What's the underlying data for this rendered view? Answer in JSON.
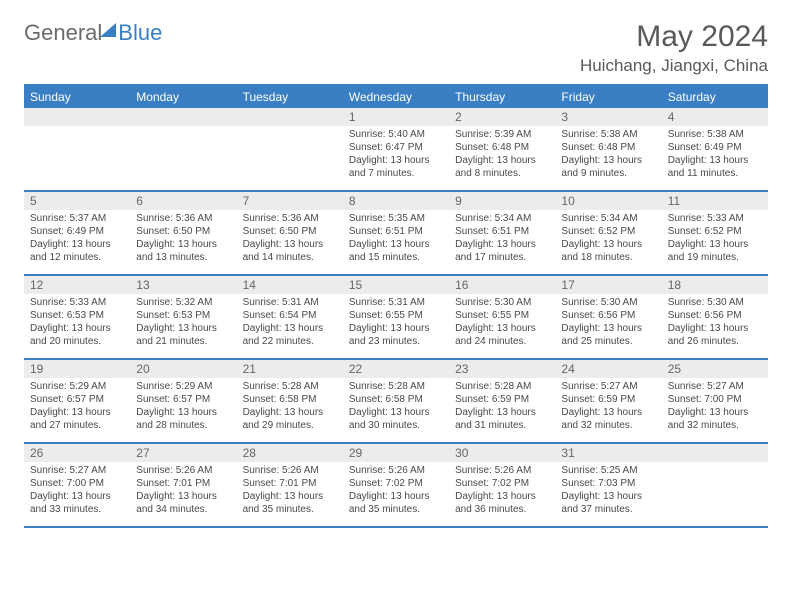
{
  "logo": {
    "part1": "General",
    "part2": "Blue"
  },
  "title": "May 2024",
  "location": "Huichang, Jiangxi, China",
  "day_headers": [
    "Sunday",
    "Monday",
    "Tuesday",
    "Wednesday",
    "Thursday",
    "Friday",
    "Saturday"
  ],
  "colors": {
    "accent": "#3a7fc4",
    "head_bg": "#3a7fc4",
    "head_text": "#ffffff",
    "daynum_bg": "#ececec",
    "text": "#4a4a4a",
    "title_text": "#595959"
  },
  "weeks": [
    [
      {
        "n": "",
        "sunrise": "",
        "sunset": "",
        "daylight": ""
      },
      {
        "n": "",
        "sunrise": "",
        "sunset": "",
        "daylight": ""
      },
      {
        "n": "",
        "sunrise": "",
        "sunset": "",
        "daylight": ""
      },
      {
        "n": "1",
        "sunrise": "Sunrise: 5:40 AM",
        "sunset": "Sunset: 6:47 PM",
        "daylight": "Daylight: 13 hours and 7 minutes."
      },
      {
        "n": "2",
        "sunrise": "Sunrise: 5:39 AM",
        "sunset": "Sunset: 6:48 PM",
        "daylight": "Daylight: 13 hours and 8 minutes."
      },
      {
        "n": "3",
        "sunrise": "Sunrise: 5:38 AM",
        "sunset": "Sunset: 6:48 PM",
        "daylight": "Daylight: 13 hours and 9 minutes."
      },
      {
        "n": "4",
        "sunrise": "Sunrise: 5:38 AM",
        "sunset": "Sunset: 6:49 PM",
        "daylight": "Daylight: 13 hours and 11 minutes."
      }
    ],
    [
      {
        "n": "5",
        "sunrise": "Sunrise: 5:37 AM",
        "sunset": "Sunset: 6:49 PM",
        "daylight": "Daylight: 13 hours and 12 minutes."
      },
      {
        "n": "6",
        "sunrise": "Sunrise: 5:36 AM",
        "sunset": "Sunset: 6:50 PM",
        "daylight": "Daylight: 13 hours and 13 minutes."
      },
      {
        "n": "7",
        "sunrise": "Sunrise: 5:36 AM",
        "sunset": "Sunset: 6:50 PM",
        "daylight": "Daylight: 13 hours and 14 minutes."
      },
      {
        "n": "8",
        "sunrise": "Sunrise: 5:35 AM",
        "sunset": "Sunset: 6:51 PM",
        "daylight": "Daylight: 13 hours and 15 minutes."
      },
      {
        "n": "9",
        "sunrise": "Sunrise: 5:34 AM",
        "sunset": "Sunset: 6:51 PM",
        "daylight": "Daylight: 13 hours and 17 minutes."
      },
      {
        "n": "10",
        "sunrise": "Sunrise: 5:34 AM",
        "sunset": "Sunset: 6:52 PM",
        "daylight": "Daylight: 13 hours and 18 minutes."
      },
      {
        "n": "11",
        "sunrise": "Sunrise: 5:33 AM",
        "sunset": "Sunset: 6:52 PM",
        "daylight": "Daylight: 13 hours and 19 minutes."
      }
    ],
    [
      {
        "n": "12",
        "sunrise": "Sunrise: 5:33 AM",
        "sunset": "Sunset: 6:53 PM",
        "daylight": "Daylight: 13 hours and 20 minutes."
      },
      {
        "n": "13",
        "sunrise": "Sunrise: 5:32 AM",
        "sunset": "Sunset: 6:53 PM",
        "daylight": "Daylight: 13 hours and 21 minutes."
      },
      {
        "n": "14",
        "sunrise": "Sunrise: 5:31 AM",
        "sunset": "Sunset: 6:54 PM",
        "daylight": "Daylight: 13 hours and 22 minutes."
      },
      {
        "n": "15",
        "sunrise": "Sunrise: 5:31 AM",
        "sunset": "Sunset: 6:55 PM",
        "daylight": "Daylight: 13 hours and 23 minutes."
      },
      {
        "n": "16",
        "sunrise": "Sunrise: 5:30 AM",
        "sunset": "Sunset: 6:55 PM",
        "daylight": "Daylight: 13 hours and 24 minutes."
      },
      {
        "n": "17",
        "sunrise": "Sunrise: 5:30 AM",
        "sunset": "Sunset: 6:56 PM",
        "daylight": "Daylight: 13 hours and 25 minutes."
      },
      {
        "n": "18",
        "sunrise": "Sunrise: 5:30 AM",
        "sunset": "Sunset: 6:56 PM",
        "daylight": "Daylight: 13 hours and 26 minutes."
      }
    ],
    [
      {
        "n": "19",
        "sunrise": "Sunrise: 5:29 AM",
        "sunset": "Sunset: 6:57 PM",
        "daylight": "Daylight: 13 hours and 27 minutes."
      },
      {
        "n": "20",
        "sunrise": "Sunrise: 5:29 AM",
        "sunset": "Sunset: 6:57 PM",
        "daylight": "Daylight: 13 hours and 28 minutes."
      },
      {
        "n": "21",
        "sunrise": "Sunrise: 5:28 AM",
        "sunset": "Sunset: 6:58 PM",
        "daylight": "Daylight: 13 hours and 29 minutes."
      },
      {
        "n": "22",
        "sunrise": "Sunrise: 5:28 AM",
        "sunset": "Sunset: 6:58 PM",
        "daylight": "Daylight: 13 hours and 30 minutes."
      },
      {
        "n": "23",
        "sunrise": "Sunrise: 5:28 AM",
        "sunset": "Sunset: 6:59 PM",
        "daylight": "Daylight: 13 hours and 31 minutes."
      },
      {
        "n": "24",
        "sunrise": "Sunrise: 5:27 AM",
        "sunset": "Sunset: 6:59 PM",
        "daylight": "Daylight: 13 hours and 32 minutes."
      },
      {
        "n": "25",
        "sunrise": "Sunrise: 5:27 AM",
        "sunset": "Sunset: 7:00 PM",
        "daylight": "Daylight: 13 hours and 32 minutes."
      }
    ],
    [
      {
        "n": "26",
        "sunrise": "Sunrise: 5:27 AM",
        "sunset": "Sunset: 7:00 PM",
        "daylight": "Daylight: 13 hours and 33 minutes."
      },
      {
        "n": "27",
        "sunrise": "Sunrise: 5:26 AM",
        "sunset": "Sunset: 7:01 PM",
        "daylight": "Daylight: 13 hours and 34 minutes."
      },
      {
        "n": "28",
        "sunrise": "Sunrise: 5:26 AM",
        "sunset": "Sunset: 7:01 PM",
        "daylight": "Daylight: 13 hours and 35 minutes."
      },
      {
        "n": "29",
        "sunrise": "Sunrise: 5:26 AM",
        "sunset": "Sunset: 7:02 PM",
        "daylight": "Daylight: 13 hours and 35 minutes."
      },
      {
        "n": "30",
        "sunrise": "Sunrise: 5:26 AM",
        "sunset": "Sunset: 7:02 PM",
        "daylight": "Daylight: 13 hours and 36 minutes."
      },
      {
        "n": "31",
        "sunrise": "Sunrise: 5:25 AM",
        "sunset": "Sunset: 7:03 PM",
        "daylight": "Daylight: 13 hours and 37 minutes."
      },
      {
        "n": "",
        "sunrise": "",
        "sunset": "",
        "daylight": ""
      }
    ]
  ]
}
